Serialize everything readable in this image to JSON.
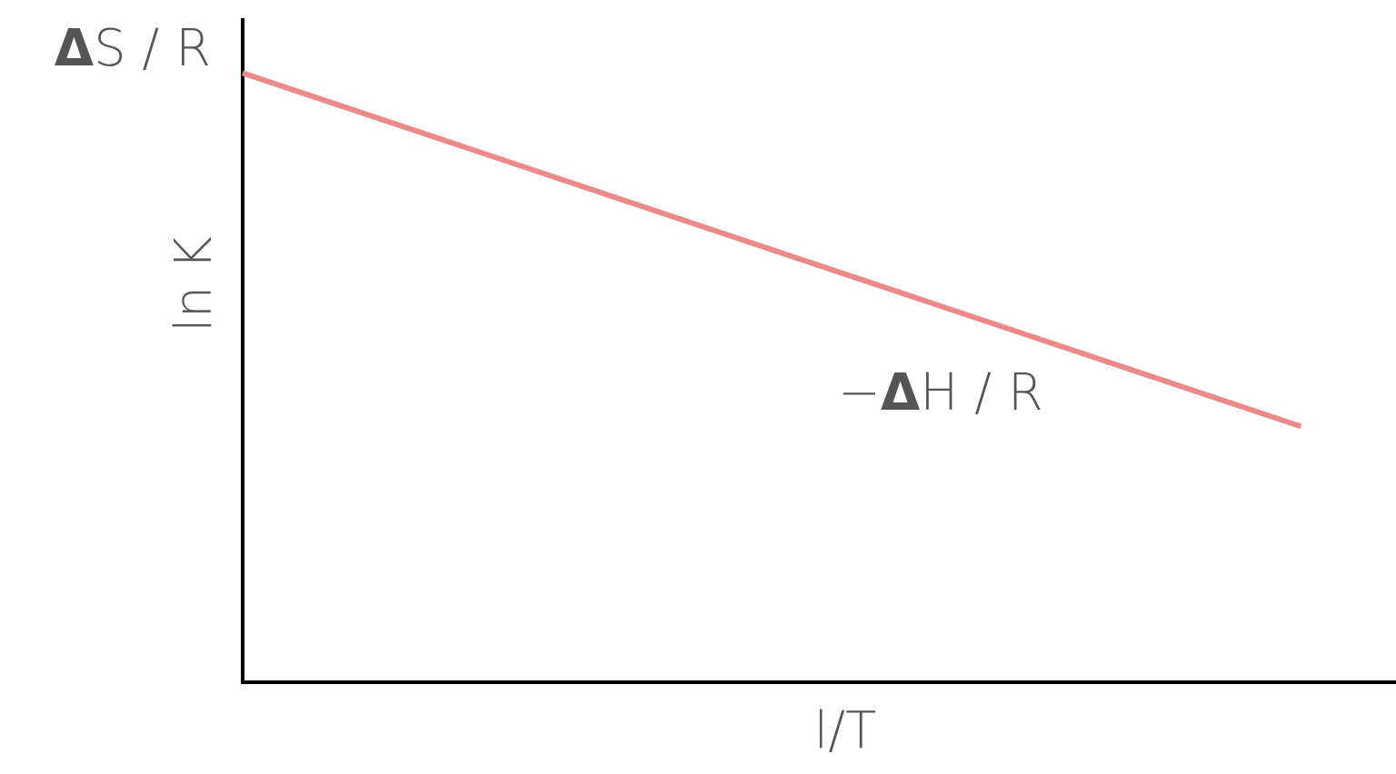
{
  "chart_data": {
    "type": "line",
    "xlabel": "l/T",
    "ylabel": "ln K",
    "intercept_label": {
      "delta": "Δ",
      "text": "S / R"
    },
    "slope_label": {
      "minus": "−",
      "delta": "Δ",
      "text": "H / R"
    },
    "series": [
      {
        "x": [
          0,
          1
        ],
        "y": [
          1,
          0.42
        ],
        "color": "#ec8a8a"
      }
    ],
    "xlim": [
      0,
      1.09
    ],
    "ylim": [
      0,
      1.09
    ],
    "grid": false,
    "axis_color": "#000000",
    "text_color": "#555555"
  }
}
